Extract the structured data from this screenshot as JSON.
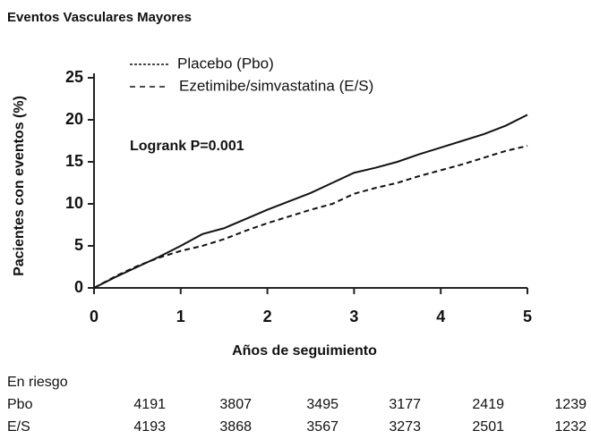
{
  "chart_data": {
    "type": "line",
    "title": "Eventos Vasculares Mayores",
    "x_label": "Años de seguimiento",
    "y_label": "Pacientes con eventos (%)",
    "annotation": "Logrank P=0.001",
    "x": [
      0,
      0.25,
      0.5,
      0.75,
      1,
      1.25,
      1.5,
      1.75,
      2,
      2.25,
      2.5,
      2.75,
      3,
      3.25,
      3.5,
      3.75,
      4,
      4.25,
      4.5,
      4.75,
      5
    ],
    "series": [
      {
        "name": "Placebo (Pbo)",
        "color": "#111111",
        "dash": "solid",
        "values": [
          0,
          1.3,
          2.5,
          3.7,
          5.0,
          6.4,
          7.1,
          8.2,
          9.3,
          10.3,
          11.3,
          12.5,
          13.7,
          14.3,
          15.0,
          15.9,
          16.7,
          17.5,
          18.3,
          19.3,
          20.6
        ]
      },
      {
        "name": "Ezetimibe/simvastatina (E/S)",
        "color": "#111111",
        "dash": "dashed",
        "values": [
          0,
          1.4,
          2.6,
          3.6,
          4.4,
          5.0,
          5.8,
          6.8,
          7.7,
          8.5,
          9.3,
          10.0,
          11.2,
          11.9,
          12.5,
          13.3,
          14.0,
          14.7,
          15.5,
          16.3,
          16.9
        ]
      }
    ],
    "xlim": [
      0,
      5
    ],
    "xticks": [
      0,
      1,
      2,
      3,
      4,
      5
    ],
    "ylim": [
      0,
      25
    ],
    "yticks": [
      0,
      5,
      10,
      15,
      20,
      25
    ],
    "at_risk": {
      "title": "En riesgo",
      "rows": [
        {
          "name": "Pbo",
          "values": [
            4191,
            3807,
            3495,
            3177,
            2419,
            1239
          ]
        },
        {
          "name": "E/S",
          "values": [
            4193,
            3868,
            3567,
            3273,
            2501,
            1232
          ]
        }
      ]
    }
  }
}
